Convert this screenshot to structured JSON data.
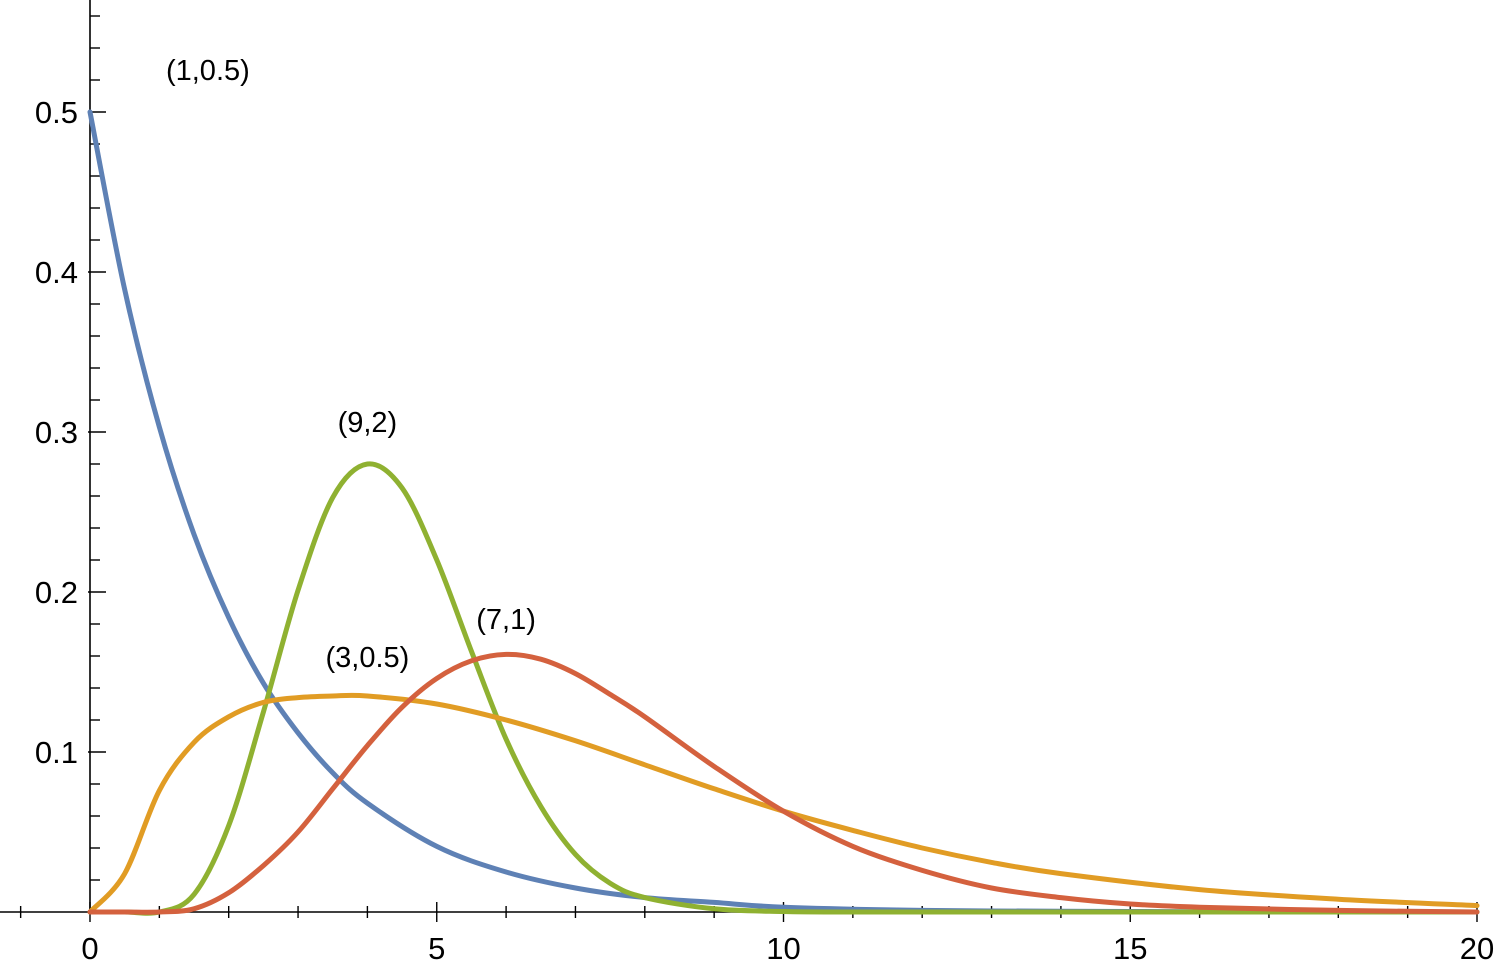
{
  "chart_data": {
    "type": "line",
    "title": "",
    "xlabel": "",
    "ylabel": "",
    "xlim": [
      0,
      20
    ],
    "ylim": [
      0,
      0.57
    ],
    "x_ticks": [
      0,
      5,
      10,
      15,
      20
    ],
    "x_tick_labels": [
      "0",
      "5",
      "10",
      "15",
      "20"
    ],
    "y_ticks": [
      0.1,
      0.2,
      0.3,
      0.4,
      0.5
    ],
    "y_tick_labels": [
      "0.1",
      "0.2",
      "0.3",
      "0.4",
      "0.5"
    ],
    "x_minor_step": 1,
    "y_minor_step": 0.02,
    "grid": false,
    "series": [
      {
        "label": "(1,0.5)",
        "color": "#5E81B5",
        "x": [
          0,
          0.5,
          1,
          1.5,
          2,
          2.5,
          3,
          3.5,
          4,
          5,
          6,
          7,
          8,
          9,
          10,
          12,
          14,
          16,
          18,
          20
        ],
        "y": [
          0.5,
          0.389,
          0.303,
          0.236,
          0.184,
          0.143,
          0.112,
          0.087,
          0.068,
          0.041,
          0.025,
          0.015,
          0.009,
          0.006,
          0.003,
          0.001,
          0.0005,
          0.0002,
          0.0001,
          0.0
        ],
        "label_at": [
          1.7,
          0.52
        ]
      },
      {
        "label": "(9,2)",
        "color": "#8FB131",
        "x": [
          0,
          0.5,
          1,
          1.5,
          2,
          2.5,
          3,
          3.5,
          4,
          4.5,
          5,
          5.5,
          6,
          6.5,
          7,
          7.5,
          8,
          9,
          10,
          11,
          12,
          14,
          16,
          18,
          20
        ],
        "y": [
          0.0,
          0.0,
          0.0,
          0.011,
          0.054,
          0.125,
          0.201,
          0.259,
          0.28,
          0.265,
          0.22,
          0.163,
          0.108,
          0.066,
          0.036,
          0.018,
          0.009,
          0.002,
          0.0003,
          0.0,
          0.0,
          0.0,
          0.0,
          0.0,
          0.0
        ],
        "label_at": [
          4.0,
          0.3
        ]
      },
      {
        "label": "(3,0.5)",
        "color": "#E19C24",
        "x": [
          0,
          0.5,
          1,
          1.5,
          2,
          2.5,
          3,
          3.5,
          4,
          5,
          6,
          7,
          8,
          9,
          10,
          11,
          12,
          13,
          14,
          16,
          18,
          20
        ],
        "y": [
          0.0,
          0.024,
          0.076,
          0.106,
          0.122,
          0.131,
          0.134,
          0.135,
          0.135,
          0.13,
          0.12,
          0.107,
          0.092,
          0.077,
          0.063,
          0.051,
          0.04,
          0.031,
          0.024,
          0.014,
          0.008,
          0.004
        ],
        "label_at": [
          4.0,
          0.153
        ]
      },
      {
        "label": "(7,1)",
        "color": "#D4613E",
        "x": [
          0,
          0.5,
          1,
          1.5,
          2,
          2.5,
          3,
          3.5,
          4,
          4.5,
          5,
          5.5,
          6,
          6.5,
          7,
          7.5,
          8,
          9,
          10,
          11,
          12,
          13,
          14,
          15,
          16,
          18,
          20
        ],
        "y": [
          0.0,
          0.0,
          0.0,
          0.002,
          0.012,
          0.029,
          0.05,
          0.077,
          0.104,
          0.128,
          0.146,
          0.157,
          0.161,
          0.158,
          0.149,
          0.136,
          0.122,
          0.091,
          0.063,
          0.041,
          0.026,
          0.015,
          0.009,
          0.005,
          0.003,
          0.001,
          0.0
        ],
        "label_at": [
          6.0,
          0.177
        ]
      }
    ]
  }
}
